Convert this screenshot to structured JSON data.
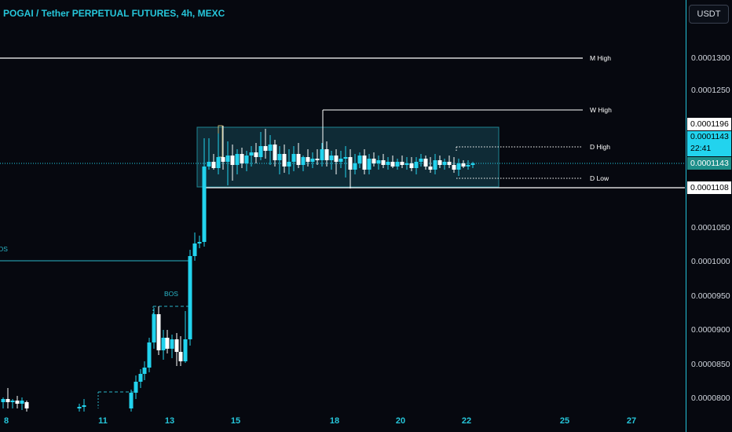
{
  "chart_title": "POGAI / Tether PERPETUAL FUTURES, 4h, MEXC",
  "currency_button": "USDT",
  "price_ticks": [
    "0.0001300",
    "0.0001250",
    "0.0001050",
    "0.0001000",
    "0.0000950",
    "0.0000900",
    "0.0000850",
    "0.0000800"
  ],
  "price_labels": {
    "w_high": "0.0001196",
    "current": "0.0001143",
    "countdown": "22:41",
    "current_repeat": "0.0001143",
    "d_low_price": "0.0001108"
  },
  "date_ticks": [
    "8",
    "11",
    "13",
    "15",
    "18",
    "20",
    "22",
    "25",
    "27"
  ],
  "levels": {
    "m_high": "M High",
    "w_high": "W High",
    "d_high": "D High",
    "d_low": "D Low"
  },
  "bos_labels": [
    "BOS",
    "BOS"
  ],
  "colors": {
    "bull": "#22d3ee",
    "bear": "#ffffff",
    "accent": "#26c6da",
    "box": "#0f2b36"
  }
}
